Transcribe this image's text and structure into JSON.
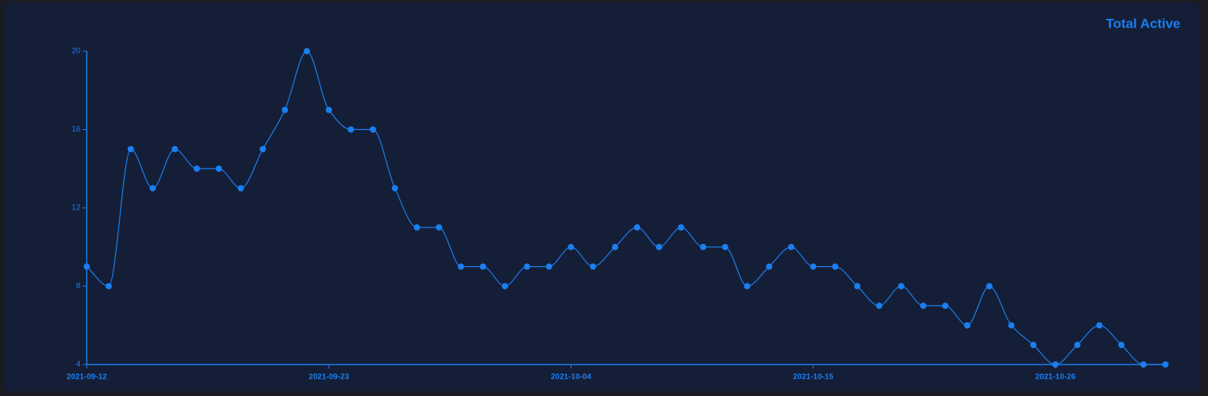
{
  "chart_data": {
    "type": "line",
    "title": "Total Active",
    "color": "#1a7ff0",
    "x": [
      "2021-09-12",
      "2021-09-13",
      "2021-09-14",
      "2021-09-15",
      "2021-09-16",
      "2021-09-17",
      "2021-09-18",
      "2021-09-19",
      "2021-09-20",
      "2021-09-21",
      "2021-09-22",
      "2021-09-23",
      "2021-09-24",
      "2021-09-25",
      "2021-09-26",
      "2021-09-27",
      "2021-09-28",
      "2021-09-29",
      "2021-09-30",
      "2021-10-01",
      "2021-10-02",
      "2021-10-03",
      "2021-10-04",
      "2021-10-05",
      "2021-10-06",
      "2021-10-07",
      "2021-10-08",
      "2021-10-09",
      "2021-10-10",
      "2021-10-11",
      "2021-10-12",
      "2021-10-13",
      "2021-10-14",
      "2021-10-15",
      "2021-10-16",
      "2021-10-17",
      "2021-10-18",
      "2021-10-19",
      "2021-10-20",
      "2021-10-21",
      "2021-10-22",
      "2021-10-23",
      "2021-10-24",
      "2021-10-25",
      "2021-10-26",
      "2021-10-27",
      "2021-10-28",
      "2021-10-29",
      "2021-10-30",
      "2021-10-31"
    ],
    "values": [
      9,
      8,
      15,
      13,
      15,
      14,
      14,
      13,
      15,
      17,
      20,
      17,
      16,
      16,
      13,
      11,
      11,
      9,
      9,
      8,
      9,
      9,
      10,
      9,
      10,
      11,
      10,
      11,
      10,
      10,
      8,
      9,
      10,
      9,
      9,
      8,
      7,
      8,
      7,
      7,
      6,
      8,
      6,
      5,
      4,
      5,
      6,
      5,
      4,
      4
    ],
    "xticks": [
      "2021-09-12",
      "2021-09-23",
      "2021-10-04",
      "2021-10-15",
      "2021-10-26"
    ],
    "ylim": [
      4,
      20
    ],
    "yticks": [
      4,
      8,
      12,
      16,
      20
    ]
  }
}
